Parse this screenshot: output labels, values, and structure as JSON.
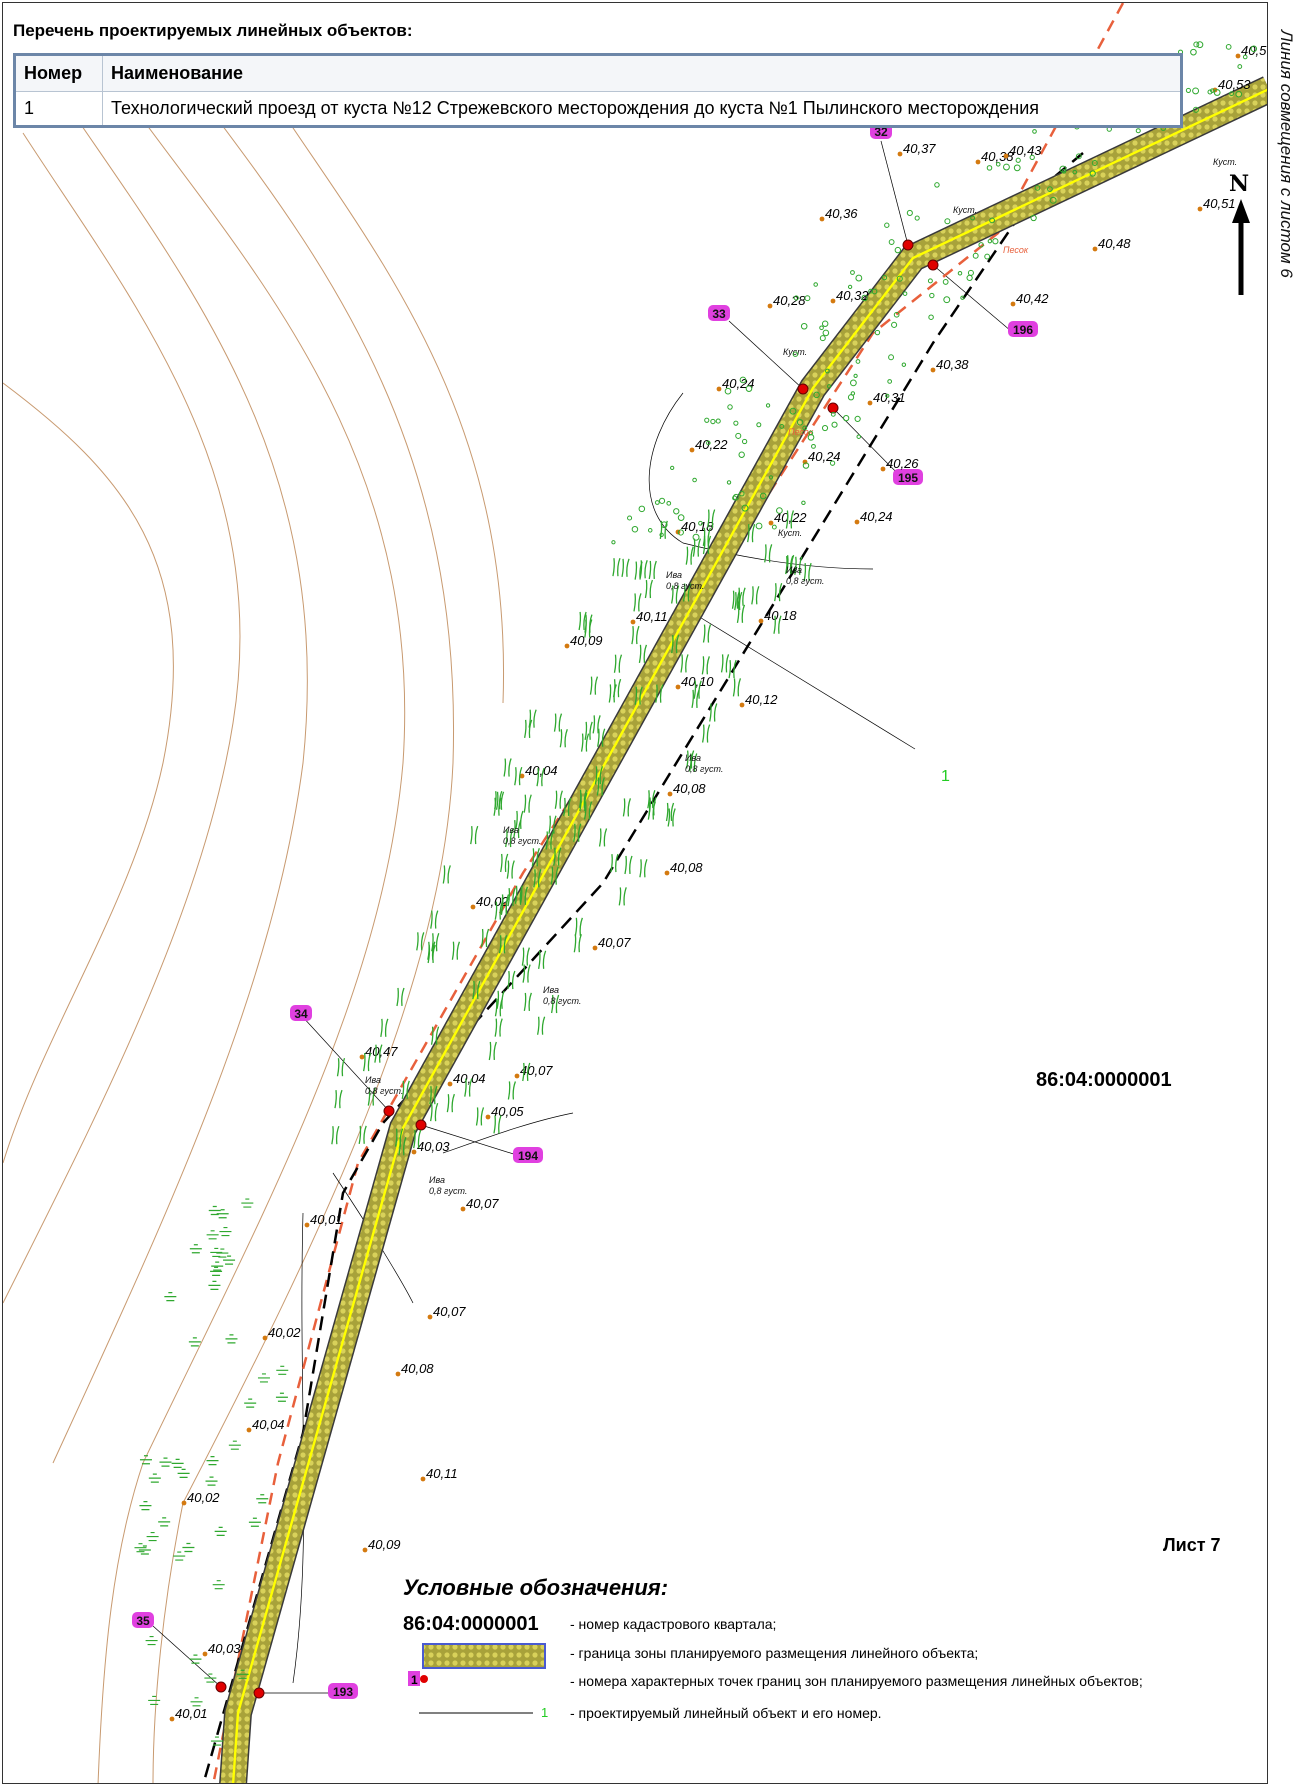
{
  "side_note": "Линия совмещения с листом 6",
  "list_title": "Перечень проектируемых линейных объектов:",
  "table": {
    "headers": [
      "Номер",
      "Наименование"
    ],
    "rows": [
      {
        "num": "1",
        "name": "Технологический проезд от куста №12 Стрежевского месторождения до куста №1 Пылинского месторождения"
      }
    ]
  },
  "quarter_code": "86:04:0000001",
  "sheet_label": "Лист 7",
  "north_label": "N",
  "legend": {
    "title": "Условные обозначения:",
    "code": "86:04:0000001",
    "items": [
      "- номер кадастрового квартала;",
      "- граница зоны планируемого размещения линейного объекта;",
      "- номера характерных точек границ зон планируемого размещения линейных объектов;",
      "- проектируемый линейный объект и его номер."
    ],
    "sample_point_num": "1",
    "sample_line_num": "1"
  },
  "map": {
    "line_number": "1",
    "points": [
      {
        "id": "32",
        "side": "left"
      },
      {
        "id": "33",
        "side": "left"
      },
      {
        "id": "34",
        "side": "left"
      },
      {
        "id": "35",
        "side": "left"
      },
      {
        "id": "196",
        "side": "right"
      },
      {
        "id": "195",
        "side": "right"
      },
      {
        "id": "194",
        "side": "right"
      },
      {
        "id": "193",
        "side": "right"
      }
    ],
    "elevations": [
      "40,5",
      "40,53",
      "40,38",
      "40,43",
      "40,37",
      "40,36",
      "40,48",
      "40,51",
      "40,42",
      "40,28",
      "40,32",
      "40,38",
      "40,24",
      "40,31",
      "40,22",
      "40,26",
      "40,24",
      "40,18",
      "40,22",
      "40,24",
      "40,11",
      "40,18",
      "40,09",
      "40,10",
      "40,12",
      "40,04",
      "40,08",
      "40,08",
      "40,02",
      "40,07",
      "40,47",
      "40,04",
      "40,07",
      "40,05",
      "40,03",
      "40,07",
      "40,01",
      "40,07",
      "40,02",
      "40,08",
      "40,04",
      "40,11",
      "40,02",
      "40,09",
      "40,03",
      "40,01"
    ],
    "vegetation": [
      "Ива 0,8 густ.",
      "Ива 0,8 густ.",
      "Ива 0,8 густ.",
      "Ива 0,8 густ.",
      "Ива 0,8 густ.",
      "Ива 0,8 густ.",
      "Ива 0,8 густ.",
      "Куст.",
      "Куст.",
      "Куст.",
      "Куст.",
      "Песок",
      "Песок"
    ]
  },
  "colors": {
    "corridor_fill": "#b8b13a",
    "centerline": "#ffff00",
    "point_marker": "#e00000",
    "point_label_bg": "#e040e0",
    "dashed_red": "#e8603c",
    "dashed_black": "#000000",
    "contour": "#c89a70",
    "elevation_dot": "#d47a10",
    "grass": "#2fa82f",
    "line_number": "#22cc22"
  }
}
